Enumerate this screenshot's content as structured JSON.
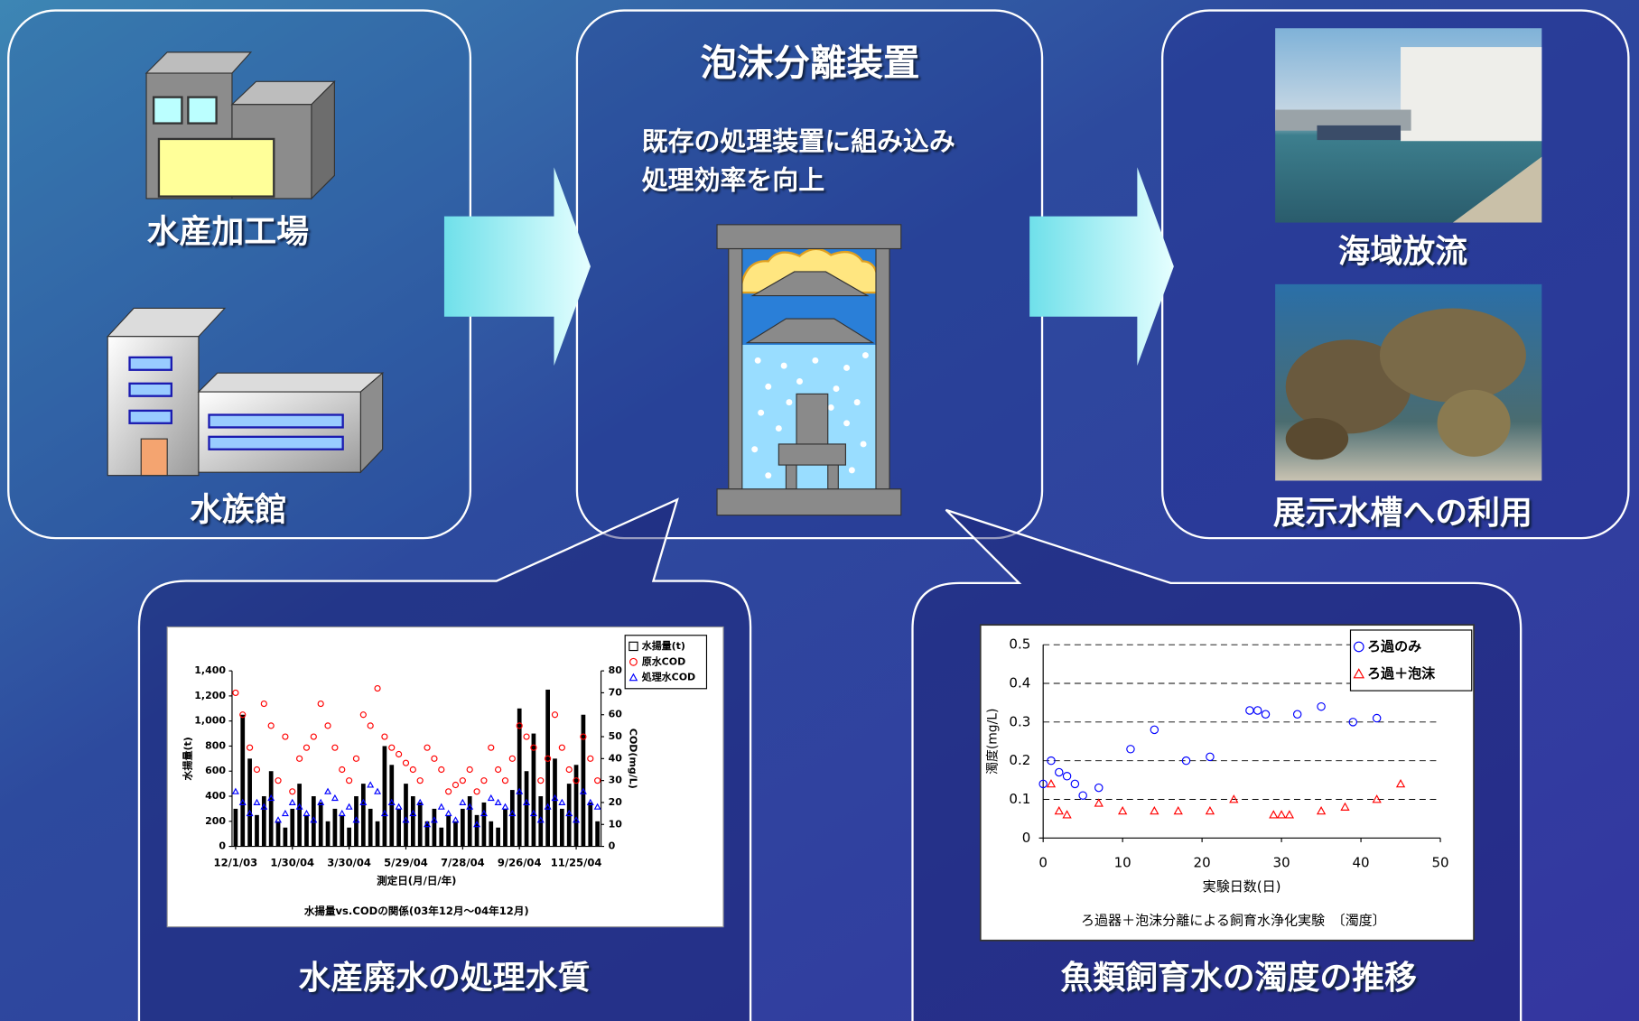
{
  "panels": {
    "left": {
      "labels": [
        "水産加工場",
        "水族館"
      ]
    },
    "center": {
      "title": "泡沫分離装置",
      "description": [
        "既存の処理装置に組み込み",
        "処理効率を向上"
      ]
    },
    "right": {
      "labels": [
        "海域放流",
        "展示水槽への利用"
      ]
    },
    "bottom": {
      "captions": [
        "水産廃水の処理水質",
        "魚類飼育水の濁度の推移"
      ]
    }
  },
  "chart_data": [
    {
      "type": "bar",
      "categories": [
        "12/1/03",
        null,
        null,
        null,
        null,
        null,
        null,
        null,
        "1/30/04",
        null,
        null,
        null,
        null,
        null,
        null,
        null,
        "3/30/04",
        null,
        null,
        null,
        null,
        null,
        null,
        null,
        "5/29/04",
        null,
        null,
        null,
        null,
        null,
        null,
        null,
        "7/28/04",
        null,
        null,
        null,
        null,
        null,
        null,
        null,
        "9/26/04",
        null,
        null,
        null,
        null,
        null,
        null,
        null,
        "11/25/04",
        null,
        null,
        null
      ],
      "series": [
        {
          "name": "水揚量(t)",
          "color": "#000000",
          "values": [
            300,
            1050,
            700,
            250,
            400,
            600,
            200,
            150,
            300,
            500,
            250,
            400,
            350,
            200,
            300,
            250,
            150,
            400,
            500,
            300,
            200,
            800,
            650,
            300,
            500,
            400,
            350,
            200,
            300,
            150,
            250,
            200,
            300,
            400,
            250,
            350,
            200,
            150,
            300,
            450,
            1100,
            600,
            900,
            400,
            1250,
            700,
            300,
            500,
            650,
            1050,
            350,
            200
          ]
        },
        {
          "name": "原水COD",
          "color": "#ff0000",
          "marker": "circle",
          "axis": "y2",
          "values": [
            70,
            60,
            45,
            35,
            65,
            55,
            30,
            50,
            25,
            40,
            45,
            50,
            65,
            55,
            45,
            35,
            30,
            40,
            60,
            55,
            72,
            50,
            45,
            42,
            38,
            35,
            30,
            45,
            40,
            35,
            25,
            28,
            30,
            35,
            25,
            30,
            45,
            35,
            30,
            40,
            55,
            50,
            45,
            30,
            40,
            60,
            45,
            35,
            30,
            50,
            40,
            30
          ]
        },
        {
          "name": "処理水COD",
          "color": "#0000ff",
          "marker": "triangle",
          "axis": "y2",
          "values": [
            25,
            20,
            15,
            20,
            18,
            22,
            12,
            15,
            20,
            18,
            15,
            12,
            20,
            25,
            22,
            15,
            18,
            12,
            20,
            28,
            25,
            15,
            20,
            18,
            12,
            15,
            20,
            10,
            12,
            18,
            15,
            12,
            20,
            18,
            10,
            15,
            22,
            20,
            18,
            15,
            25,
            20,
            15,
            12,
            18,
            22,
            20,
            15,
            12,
            25,
            20,
            18
          ]
        }
      ],
      "ylim": [
        0,
        1400
      ],
      "yticks": [
        0,
        200,
        400,
        600,
        800,
        {
          "value": 1000,
          "label": "1,000"
        },
        {
          "value": 1200,
          "label": "1,200"
        },
        {
          "value": 1400,
          "label": "1,400"
        }
      ],
      "y2lim": [
        0,
        80
      ],
      "y2ticks": [
        0,
        10,
        20,
        30,
        40,
        50,
        60,
        70,
        80
      ],
      "xlabel": "測定日(月/日/年)",
      "ylabel": "水揚量(t)",
      "y2label": "COD(mg/L)",
      "caption": "水揚量vs.CODの関係(03年12月～04年12月)",
      "legend": "upper right"
    },
    {
      "type": "scatter",
      "series": [
        {
          "name": "ろ過のみ",
          "color": "#0000ff",
          "marker": "circle",
          "x": [
            0,
            1,
            2,
            3,
            4,
            5,
            7,
            11,
            14,
            18,
            21,
            26,
            27,
            28,
            32,
            35,
            39,
            42
          ],
          "values": [
            0.14,
            0.2,
            0.17,
            0.16,
            0.14,
            0.11,
            0.13,
            0.23,
            0.28,
            0.2,
            0.21,
            0.33,
            0.33,
            0.32,
            0.32,
            0.34,
            0.3,
            0.31
          ]
        },
        {
          "name": "ろ過＋泡沫",
          "color": "#ff0000",
          "marker": "triangle",
          "x": [
            1,
            2,
            3,
            7,
            10,
            14,
            17,
            21,
            24,
            29,
            30,
            31,
            35,
            38,
            42,
            45
          ],
          "values": [
            0.14,
            0.07,
            0.06,
            0.09,
            0.07,
            0.07,
            0.07,
            0.07,
            0.1,
            0.06,
            0.06,
            0.06,
            0.07,
            0.08,
            0.1,
            0.14
          ]
        }
      ],
      "xlim": [
        0,
        50
      ],
      "xticks": [
        0,
        10,
        20,
        30,
        40,
        50
      ],
      "ylim": [
        0,
        0.5
      ],
      "yticks": [
        0,
        0.1,
        0.2,
        0.3,
        0.4,
        0.5
      ],
      "xlabel": "実験日数(日)",
      "ylabel": "濁度(mg/L)",
      "caption": "ろ過器＋泡沫分離による飼育水浄化実験　〔濁度〕",
      "grid": true,
      "legend": "upper right"
    }
  ]
}
